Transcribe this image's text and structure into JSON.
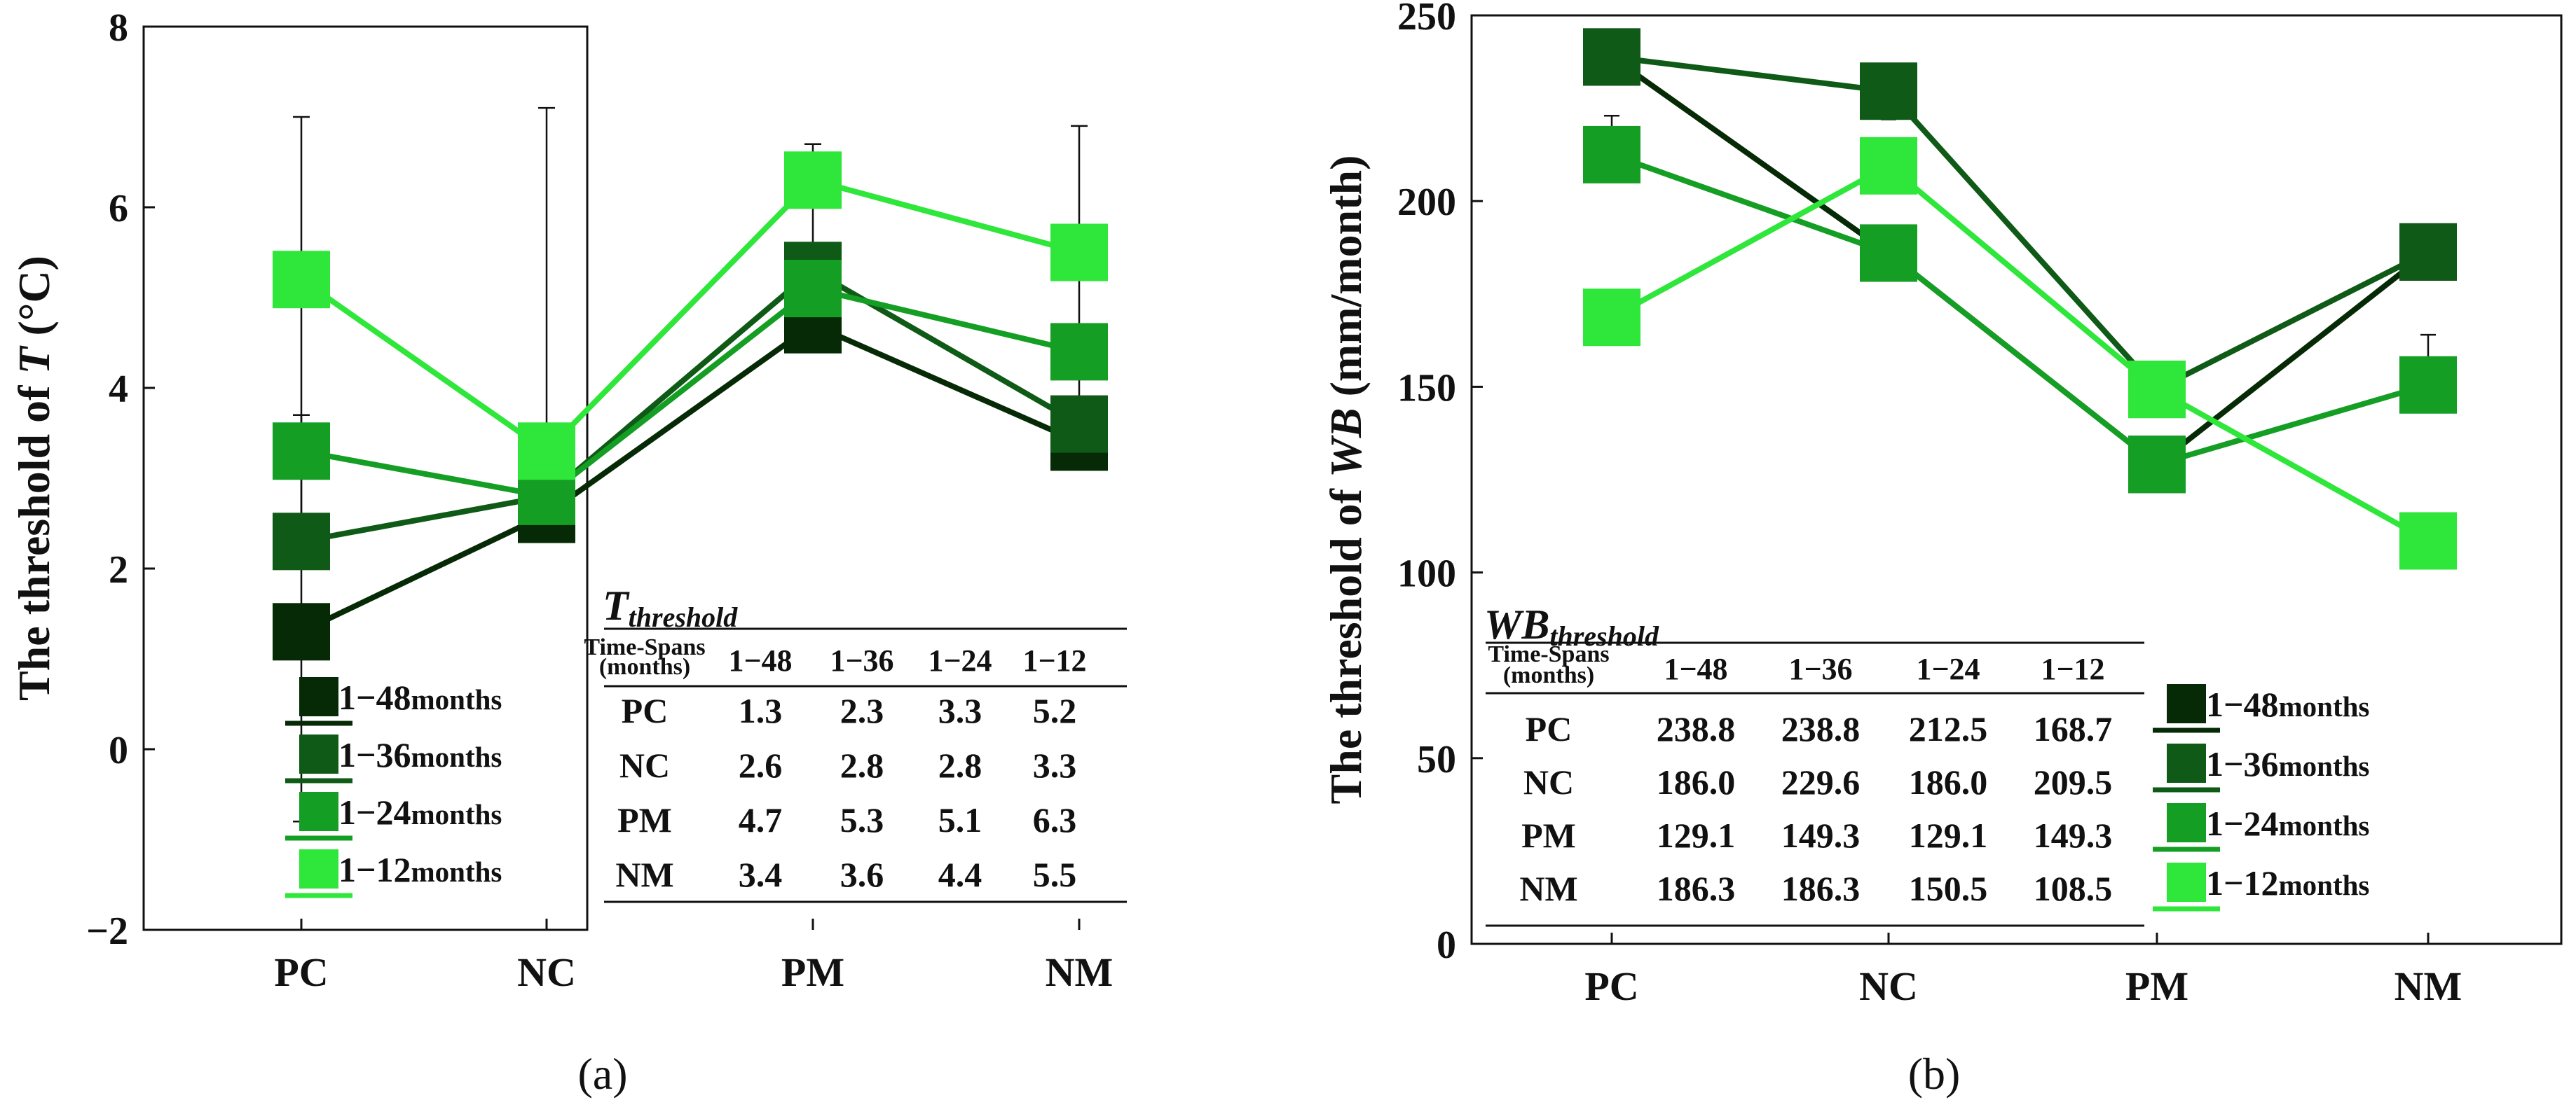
{
  "chart_data": [
    {
      "type": "line",
      "panel_caption": "(a)",
      "ylabel_prefix": "The threshold of ",
      "ylabel_var": "T",
      "ylabel_suffix": " (°C)",
      "categories": [
        "PC",
        "NC",
        "PM",
        "NM"
      ],
      "ylim": [
        -2,
        8
      ],
      "yticks": [
        "8",
        "6",
        "4",
        "2",
        "0",
        "−2"
      ],
      "ytick_values": [
        8,
        6,
        4,
        2,
        0,
        -2
      ],
      "series": [
        {
          "name": "1−48",
          "legend_suffix": "months",
          "color": "#062a06",
          "values": [
            1.3,
            2.6,
            4.7,
            3.4
          ]
        },
        {
          "name": "1−36",
          "legend_suffix": "months",
          "color": "#0e5a16",
          "values": [
            2.3,
            2.8,
            5.3,
            3.6
          ]
        },
        {
          "name": "1−24",
          "legend_suffix": "months",
          "color": "#159e24",
          "values": [
            3.3,
            2.8,
            5.1,
            4.4
          ]
        },
        {
          "name": "1−12",
          "legend_suffix": "months",
          "color": "#2fe63a",
          "values": [
            5.2,
            3.3,
            6.3,
            5.5
          ]
        }
      ],
      "errorbars": [
        {
          "x": "PC",
          "low": -0.8,
          "high": 7.0
        },
        {
          "x": "PC",
          "low": 2.6,
          "high": 3.7
        },
        {
          "x": "NC",
          "low": 2.5,
          "high": 7.1
        },
        {
          "x": "NC",
          "low": 2.5,
          "high": 3.0
        },
        {
          "x": "PM",
          "low": 4.6,
          "high": 6.7
        },
        {
          "x": "NM",
          "low": 3.2,
          "high": 6.9
        }
      ],
      "table": {
        "title_main": "T",
        "title_sub": "threshold",
        "header_line1": "Time-Spans",
        "header_line2": "(months)",
        "columns": [
          "1−48",
          "1−36",
          "1−24",
          "1−12"
        ],
        "rows": [
          {
            "label": "PC",
            "values": [
              "1.3",
              "2.3",
              "3.3",
              "5.2"
            ]
          },
          {
            "label": "NC",
            "values": [
              "2.6",
              "2.8",
              "2.8",
              "3.3"
            ]
          },
          {
            "label": "PM",
            "values": [
              "4.7",
              "5.3",
              "5.1",
              "6.3"
            ]
          },
          {
            "label": "NM",
            "values": [
              "3.4",
              "3.6",
              "4.4",
              "5.5"
            ]
          }
        ]
      }
    },
    {
      "type": "line",
      "panel_caption": "(b)",
      "ylabel_prefix": "The threshold of ",
      "ylabel_var": "WB",
      "ylabel_suffix": " (mm/month)",
      "categories": [
        "PC",
        "NC",
        "PM",
        "NM"
      ],
      "ylim": [
        0,
        250
      ],
      "yticks": [
        "250",
        "200",
        "150",
        "100",
        "50",
        "0"
      ],
      "ytick_values": [
        250,
        200,
        150,
        100,
        50,
        0
      ],
      "series": [
        {
          "name": "1−48",
          "legend_suffix": "months",
          "color": "#062a06",
          "values": [
            238.8,
            186.0,
            129.1,
            186.3
          ]
        },
        {
          "name": "1−36",
          "legend_suffix": "months",
          "color": "#0e5a16",
          "values": [
            238.8,
            229.6,
            149.3,
            186.3
          ]
        },
        {
          "name": "1−24",
          "legend_suffix": "months",
          "color": "#159e24",
          "values": [
            212.5,
            186.0,
            129.1,
            150.5
          ]
        },
        {
          "name": "1−12",
          "legend_suffix": "months",
          "color": "#2fe63a",
          "values": [
            168.7,
            209.5,
            149.3,
            108.5
          ]
        }
      ],
      "errorbars": [
        {
          "x": "PC",
          "low": 237,
          "high": 241
        },
        {
          "x": "PC",
          "low": 208,
          "high": 223
        },
        {
          "x": "NC",
          "low": 222,
          "high": 237
        },
        {
          "x": "NC",
          "low": 206,
          "high": 214
        },
        {
          "x": "NC",
          "low": 184,
          "high": 189
        },
        {
          "x": "NM",
          "low": 148,
          "high": 164
        }
      ],
      "table": {
        "title_main": "WB",
        "title_sub": "threshold",
        "header_line1": "Time-Spans",
        "header_line2": "(months)",
        "columns": [
          "1−48",
          "1−36",
          "1−24",
          "1−12"
        ],
        "rows": [
          {
            "label": "PC",
            "values": [
              "238.8",
              "238.8",
              "212.5",
              "168.7"
            ]
          },
          {
            "label": "NC",
            "values": [
              "186.0",
              "229.6",
              "186.0",
              "209.5"
            ]
          },
          {
            "label": "PM",
            "values": [
              "129.1",
              "149.3",
              "129.1",
              "149.3"
            ]
          },
          {
            "label": "NM",
            "values": [
              "186.3",
              "186.3",
              "150.5",
              "108.5"
            ]
          }
        ]
      }
    }
  ]
}
